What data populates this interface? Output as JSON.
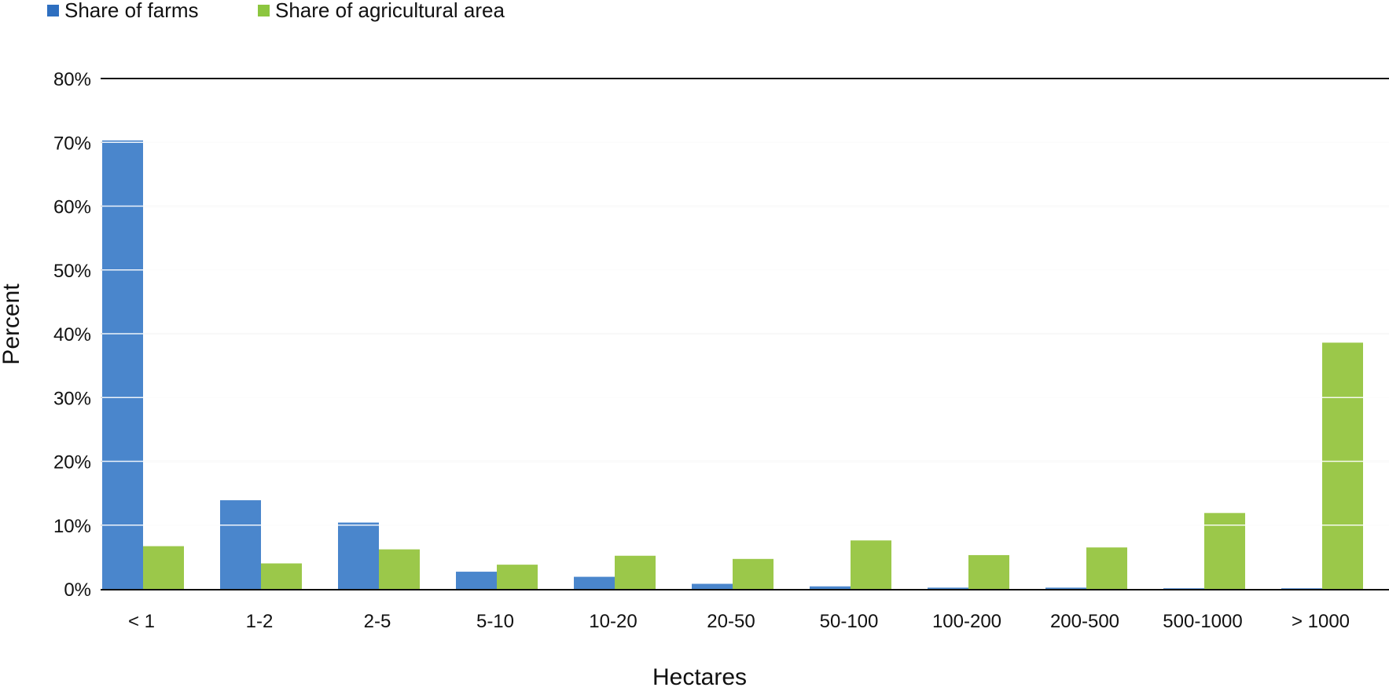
{
  "chart_data": {
    "type": "bar",
    "title": "",
    "xlabel": "Hectares",
    "ylabel": "Percent",
    "categories": [
      "< 1",
      "1-2",
      "2-5",
      "5-10",
      "10-20",
      "20-50",
      "50-100",
      "100-200",
      "200-500",
      "500-1000",
      "> 1000"
    ],
    "series": [
      {
        "name": "Share of farms",
        "color": "#4a86cc",
        "legend_color": "#2e6fc0",
        "values": [
          70.3,
          13.9,
          10.4,
          2.7,
          1.9,
          0.8,
          0.4,
          0.2,
          0.2,
          0.1,
          0.1
        ]
      },
      {
        "name": "Share of agricultural area",
        "color": "#9bc84a",
        "legend_color": "#8cc63f",
        "values": [
          6.7,
          4.0,
          6.2,
          3.8,
          5.2,
          4.7,
          7.6,
          5.3,
          6.5,
          11.9,
          38.6
        ]
      }
    ],
    "ylim": [
      0,
      80
    ],
    "yticks": [
      0,
      10,
      20,
      30,
      40,
      50,
      60,
      70,
      80
    ],
    "ytick_labels": [
      "0%",
      "10%",
      "20%",
      "30%",
      "40%",
      "50%",
      "60%",
      "70%",
      "80%"
    ],
    "grid": true,
    "legend_position": "top-left"
  }
}
